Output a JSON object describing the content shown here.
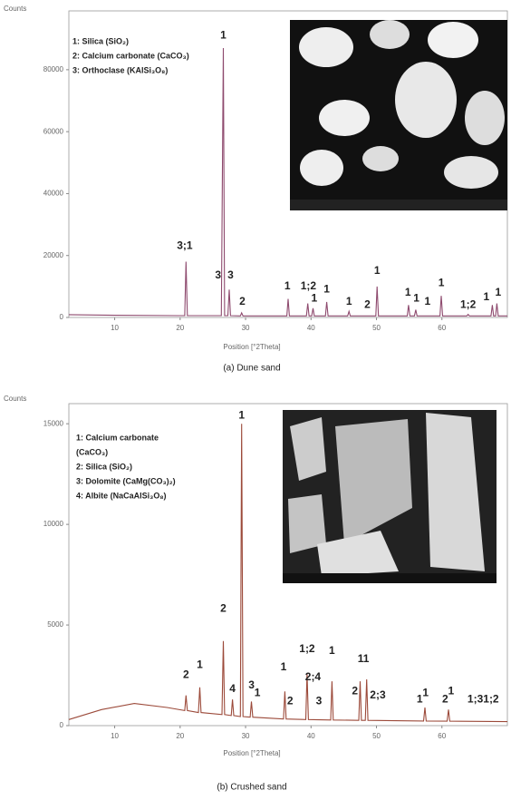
{
  "chart_data": [
    {
      "type": "line",
      "caption": "(a) Dune sand",
      "x_label": "Position [°2Theta]",
      "y_label": "Counts",
      "color": "#8e4a6e",
      "xlim": [
        3,
        70
      ],
      "xticks": [
        10,
        20,
        30,
        40,
        50,
        60
      ],
      "ylim": [
        0,
        99000
      ],
      "yticks": [
        0,
        20000,
        40000,
        60000,
        80000
      ],
      "notes": [
        "1: Silica (SiO₂)",
        "2: Calcium carbonate (CaCO₃)",
        "3: Orthoclase (KAlSi₃O₈)"
      ],
      "x": [
        3,
        10,
        20,
        20.7,
        20.9,
        21.1,
        26.3,
        26.6,
        26.8,
        27.3,
        27.5,
        27.7,
        29.2,
        29.4,
        29.6,
        36.3,
        36.5,
        36.7,
        39.3,
        39.5,
        39.7,
        40.1,
        40.3,
        40.5,
        42.2,
        42.4,
        42.6,
        45.6,
        45.8,
        46,
        49.9,
        50.1,
        50.3,
        54.7,
        54.9,
        55.1,
        55.8,
        56,
        56.2,
        59.7,
        59.9,
        60.1,
        63.8,
        64,
        64.2,
        67.5,
        67.7,
        67.9,
        68.2,
        68.4,
        68.6,
        70
      ],
      "values": [
        900,
        700,
        600,
        600,
        18000,
        600,
        600,
        87000,
        600,
        600,
        9000,
        600,
        500,
        1500,
        500,
        500,
        6000,
        500,
        500,
        4500,
        500,
        500,
        3000,
        500,
        500,
        5000,
        500,
        500,
        2000,
        500,
        500,
        10000,
        500,
        500,
        4000,
        500,
        500,
        2500,
        500,
        500,
        7000,
        500,
        500,
        1000,
        500,
        500,
        4000,
        500,
        500,
        4500,
        500,
        500
      ],
      "annotations": [
        {
          "label": "1",
          "x": 26.6,
          "y": 91000
        },
        {
          "label": "3;1",
          "x": 20.7,
          "y": 23000
        },
        {
          "label": "3",
          "x": 25.8,
          "y": 13500
        },
        {
          "label": "3",
          "x": 27.7,
          "y": 13500
        },
        {
          "label": "2",
          "x": 29.5,
          "y": 5000
        },
        {
          "label": "1",
          "x": 36.4,
          "y": 10000
        },
        {
          "label": "1;2",
          "x": 39.6,
          "y": 10000
        },
        {
          "label": "1",
          "x": 40.5,
          "y": 6000
        },
        {
          "label": "1",
          "x": 42.4,
          "y": 9000
        },
        {
          "label": "1",
          "x": 45.8,
          "y": 5000
        },
        {
          "label": "2",
          "x": 48.6,
          "y": 4000
        },
        {
          "label": "1",
          "x": 50.1,
          "y": 15000
        },
        {
          "label": "1",
          "x": 54.8,
          "y": 8000
        },
        {
          "label": "1",
          "x": 56.1,
          "y": 6000
        },
        {
          "label": "1",
          "x": 57.8,
          "y": 5000
        },
        {
          "label": "1",
          "x": 59.9,
          "y": 11000
        },
        {
          "label": "1;2",
          "x": 64,
          "y": 4000
        },
        {
          "label": "1",
          "x": 66.8,
          "y": 6500
        },
        {
          "label": "1",
          "x": 68.6,
          "y": 8000
        }
      ]
    },
    {
      "type": "line",
      "caption": "(b) Crushed sand",
      "x_label": "Position [°2Theta]",
      "y_label": "Counts",
      "color": "#9c4a3a",
      "xlim": [
        3,
        70
      ],
      "xticks": [
        10,
        20,
        30,
        40,
        50,
        60
      ],
      "ylim": [
        0,
        16000
      ],
      "yticks": [
        0,
        5000,
        10000,
        15000
      ],
      "notes": [
        "1: Calcium carbonate",
        "(CaCO₃)",
        "2: Silica (SiO₂)",
        "3: Dolomite (CaMg(CO₃)₂)",
        "4: Albite (NaCaAlSi₃O₈)"
      ],
      "x": [
        3,
        8,
        13,
        18,
        20.7,
        20.9,
        21.1,
        22.8,
        23,
        23.2,
        26.4,
        26.6,
        26.8,
        27.8,
        28,
        28.2,
        29.2,
        29.4,
        29.6,
        30.7,
        30.9,
        31.1,
        35.8,
        36,
        36.2,
        39.2,
        39.4,
        39.6,
        43,
        43.2,
        43.4,
        47.3,
        47.5,
        47.7,
        48.3,
        48.5,
        48.7,
        57.2,
        57.4,
        57.6,
        60.8,
        61,
        61.2,
        70
      ],
      "values": [
        300,
        800,
        1100,
        900,
        750,
        1500,
        750,
        650,
        1900,
        650,
        550,
        4200,
        550,
        500,
        1300,
        500,
        450,
        15000,
        450,
        420,
        1200,
        420,
        330,
        1700,
        330,
        300,
        2600,
        300,
        280,
        2200,
        280,
        260,
        2200,
        260,
        260,
        2300,
        260,
        230,
        900,
        230,
        220,
        800,
        220,
        200
      ],
      "annotations": [
        {
          "label": "1",
          "x": 29.4,
          "y": 15400
        },
        {
          "label": "2",
          "x": 26.6,
          "y": 5800
        },
        {
          "label": "1",
          "x": 23,
          "y": 3000
        },
        {
          "label": "2",
          "x": 20.9,
          "y": 2500
        },
        {
          "label": "4",
          "x": 28,
          "y": 1800
        },
        {
          "label": "3",
          "x": 30.9,
          "y": 2000
        },
        {
          "label": "1",
          "x": 31.8,
          "y": 1600
        },
        {
          "label": "1",
          "x": 35.8,
          "y": 2900
        },
        {
          "label": "2",
          "x": 36.8,
          "y": 1200
        },
        {
          "label": "1;2",
          "x": 39.4,
          "y": 3800
        },
        {
          "label": "2;4",
          "x": 40.3,
          "y": 2400
        },
        {
          "label": "3",
          "x": 41.2,
          "y": 1200
        },
        {
          "label": "1",
          "x": 43.2,
          "y": 3700
        },
        {
          "label": "2",
          "x": 46.7,
          "y": 1700
        },
        {
          "label": "11",
          "x": 48,
          "y": 3300
        },
        {
          "label": "2;3",
          "x": 50.2,
          "y": 1500
        },
        {
          "label": "1",
          "x": 56.6,
          "y": 1300
        },
        {
          "label": "1",
          "x": 57.5,
          "y": 1600
        },
        {
          "label": "2",
          "x": 60.5,
          "y": 1300
        },
        {
          "label": "1",
          "x": 61.4,
          "y": 1700
        },
        {
          "label": "1;31;2",
          "x": 66.3,
          "y": 1300
        }
      ]
    }
  ]
}
